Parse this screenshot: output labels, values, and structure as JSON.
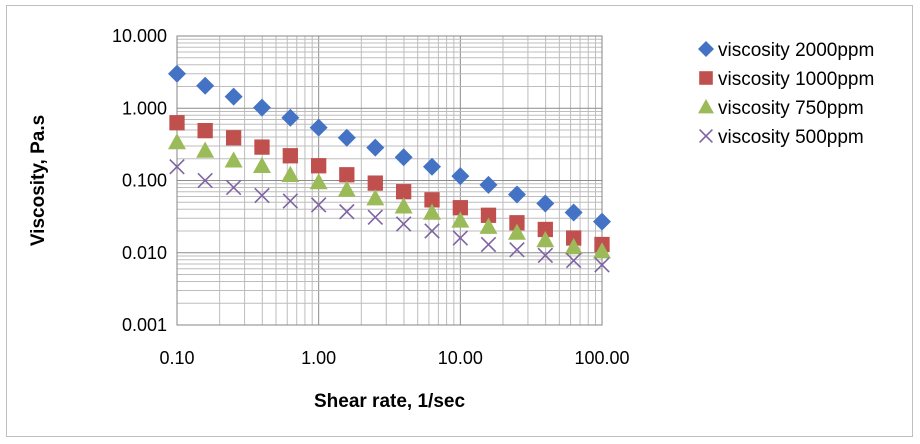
{
  "chart_data": {
    "type": "scatter",
    "x_scale": "log",
    "y_scale": "log",
    "xlabel": "Shear rate, 1/sec",
    "ylabel": "Viscosity, Pa.s",
    "xlim": [
      0.1,
      100
    ],
    "ylim": [
      0.001,
      10
    ],
    "x_ticks": [
      "0.10",
      "1.00",
      "10.00",
      "100.00"
    ],
    "y_ticks": [
      "10.000",
      "1.000",
      "0.100",
      "0.010",
      "0.001"
    ],
    "grid": "major and minor",
    "legend_position": "right",
    "x": [
      0.1,
      0.158,
      0.251,
      0.398,
      0.631,
      1.0,
      1.58,
      2.51,
      3.98,
      6.31,
      10.0,
      15.8,
      25.1,
      39.8,
      63.1,
      100
    ],
    "series": [
      {
        "name": "viscosity 2000ppm",
        "marker": "diamond",
        "color": "#4472c4",
        "values": [
          3.0,
          2.05,
          1.45,
          1.02,
          0.74,
          0.54,
          0.39,
          0.285,
          0.21,
          0.155,
          0.115,
          0.087,
          0.064,
          0.048,
          0.036,
          0.027
        ]
      },
      {
        "name": "viscosity 1000ppm",
        "marker": "square",
        "color": "#c0504d",
        "values": [
          0.63,
          0.49,
          0.39,
          0.29,
          0.22,
          0.16,
          0.12,
          0.092,
          0.07,
          0.054,
          0.042,
          0.033,
          0.026,
          0.021,
          0.016,
          0.013
        ]
      },
      {
        "name": "viscosity 750ppm",
        "marker": "triangle",
        "color": "#9bbb59",
        "values": [
          0.34,
          0.26,
          0.19,
          0.16,
          0.12,
          0.095,
          0.075,
          0.057,
          0.044,
          0.036,
          0.028,
          0.023,
          0.019,
          0.015,
          0.012,
          0.0105
        ]
      },
      {
        "name": "viscosity 500ppm",
        "marker": "x",
        "color": "#8064a2",
        "values": [
          0.155,
          0.1,
          0.08,
          0.062,
          0.052,
          0.046,
          0.037,
          0.031,
          0.025,
          0.02,
          0.016,
          0.013,
          0.011,
          0.0092,
          0.0078,
          0.0068
        ]
      }
    ]
  }
}
